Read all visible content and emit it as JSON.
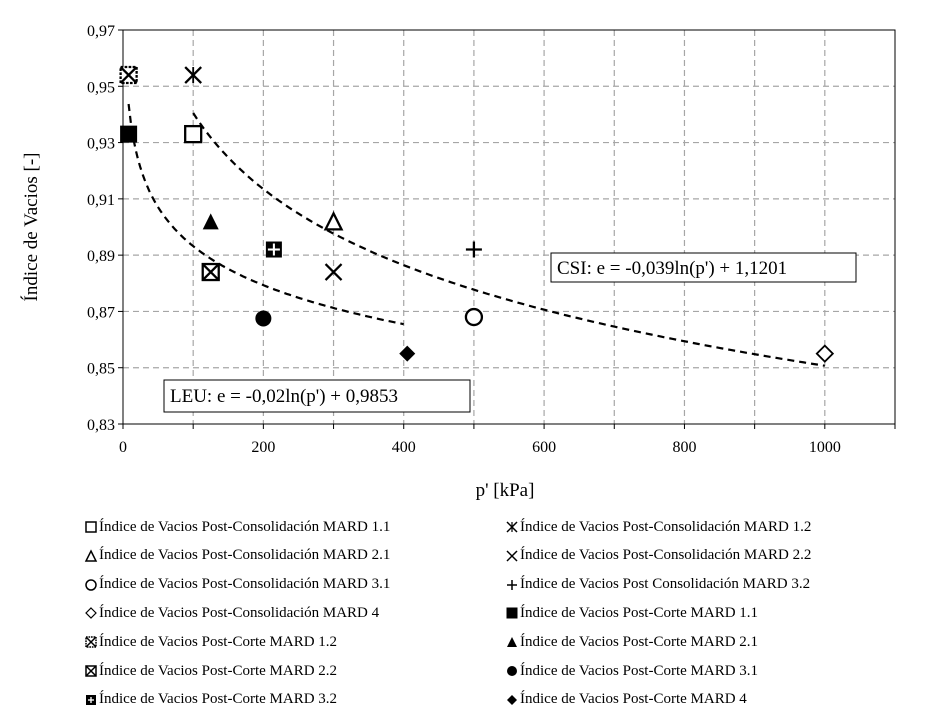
{
  "chart_data": {
    "type": "scatter",
    "xlabel": "p' [kPa]",
    "ylabel": "Índice de Vacios [-]",
    "xlim": [
      0,
      1100
    ],
    "ylim": [
      0.83,
      0.97
    ],
    "x_ticks": [
      "0",
      "200",
      "400",
      "600",
      "800",
      "1000"
    ],
    "y_ticks": [
      "0,83",
      "0,85",
      "0,87",
      "0,89",
      "0,91",
      "0,93",
      "0,95",
      "0,97"
    ],
    "grid": true,
    "legend_position": "bottom",
    "series": [
      {
        "name": "Índice de Vacios Post-Consolidación MARD 1.1",
        "marker": "square-open",
        "x": [
          100
        ],
        "y": [
          0.933
        ]
      },
      {
        "name": "Índice de Vacios Post-Consolidación MARD 1.2",
        "marker": "asterisk",
        "x": [
          100
        ],
        "y": [
          0.954
        ]
      },
      {
        "name": "Índice de Vacios Post-Consolidación MARD 2.1",
        "marker": "triangle-open",
        "x": [
          300
        ],
        "y": [
          0.902
        ]
      },
      {
        "name": "Índice de Vacios Post-Consolidación MARD 2.2",
        "marker": "x",
        "x": [
          300
        ],
        "y": [
          0.884
        ]
      },
      {
        "name": "Índice de Vacios Post-Consolidación MARD 3.1",
        "marker": "circle-open",
        "x": [
          500
        ],
        "y": [
          0.868
        ]
      },
      {
        "name": "Índice de Vacios Post Consolidación MARD 3.2",
        "marker": "plus",
        "x": [
          500
        ],
        "y": [
          0.892
        ]
      },
      {
        "name": "Índice de Vacios Post-Consolidación MARD 4",
        "marker": "diamond-open",
        "x": [
          1000
        ],
        "y": [
          0.855
        ]
      },
      {
        "name": "Índice de Vacios Post-Corte MARD 1.1",
        "marker": "square-filled",
        "x": [
          8
        ],
        "y": [
          0.933
        ]
      },
      {
        "name": "Índice de Vacios Post-Corte MARD 1.2",
        "marker": "square-x-dotted",
        "x": [
          8
        ],
        "y": [
          0.954
        ]
      },
      {
        "name": "Índice de Vacios Post-Corte MARD 2.1",
        "marker": "triangle-filled",
        "x": [
          125
        ],
        "y": [
          0.902
        ]
      },
      {
        "name": "Índice de Vacios Post-Corte MARD 2.2",
        "marker": "square-x",
        "x": [
          125
        ],
        "y": [
          0.884
        ]
      },
      {
        "name": "Índice de Vacios Post-Corte MARD 3.1",
        "marker": "circle-filled",
        "x": [
          200
        ],
        "y": [
          0.8675
        ]
      },
      {
        "name": "Índice de Vacios Post-Corte MARD 3.2",
        "marker": "square-plus",
        "x": [
          215
        ],
        "y": [
          0.892
        ]
      },
      {
        "name": "Índice de Vacios Post-Corte MARD 4",
        "marker": "diamond-filled",
        "x": [
          405
        ],
        "y": [
          0.855
        ]
      }
    ],
    "trendlines": [
      {
        "name": "CSI",
        "a": -0.039,
        "b": 1.1201,
        "x_range": [
          100,
          1000
        ],
        "label": "CSI: e = -0,039ln(p') + 1,1201"
      },
      {
        "name": "LEU",
        "a": -0.02,
        "b": 0.9853,
        "x_range": [
          8,
          400
        ],
        "label": "LEU: e = -0,02ln(p') + 0,9853"
      }
    ]
  }
}
